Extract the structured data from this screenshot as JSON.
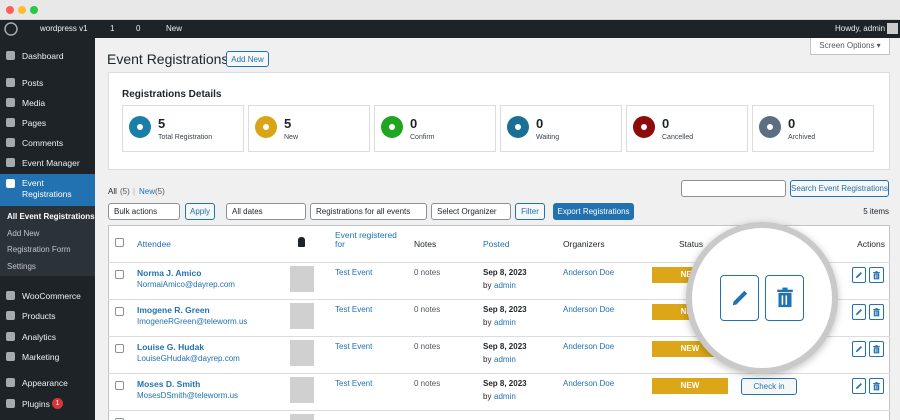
{
  "admin_bar": {
    "site": "wordpress v1",
    "updates": "1",
    "comments": "0",
    "new": "New",
    "howdy": "Howdy, admin"
  },
  "menu": {
    "top": [
      "Dashboard",
      "Posts",
      "Media",
      "Pages",
      "Comments",
      "Event Manager"
    ],
    "active": [
      "Event",
      "Registrations"
    ],
    "submenu": [
      "All Event Registrations",
      "Add New",
      "Registration Form",
      "Settings"
    ],
    "bottom": [
      "WooCommerce",
      "Products",
      "Analytics",
      "Marketing",
      "Appearance",
      "Plugins"
    ],
    "plugins_badge": "1"
  },
  "header": {
    "title": "Event Registrations",
    "add_new": "Add New",
    "screen_options": "Screen Options ▾"
  },
  "details": {
    "title": "Registrations Details",
    "stats": [
      {
        "value": "5",
        "label": "Total Registration",
        "color": "#1a7fa8"
      },
      {
        "value": "5",
        "label": "New",
        "color": "#d9a515"
      },
      {
        "value": "0",
        "label": "Confirm",
        "color": "#20a520"
      },
      {
        "value": "0",
        "label": "Waiting",
        "color": "#1a6f94"
      },
      {
        "value": "0",
        "label": "Cancelled",
        "color": "#8e0b0b"
      },
      {
        "value": "0",
        "label": "Archived",
        "color": "#5b6e82"
      }
    ]
  },
  "views": {
    "all": "All",
    "all_count": "(5)",
    "sep": "|",
    "new": "New",
    "new_count": "(5)"
  },
  "search_button": "Search Event Registrations",
  "filters": {
    "bulk": "Bulk actions",
    "apply": "Apply",
    "dates": "All dates",
    "events": "Registrations for all events",
    "organizer": "Select Organizer",
    "filter": "Filter",
    "export": "Export Registrations",
    "items": "5 items"
  },
  "table": {
    "columns": {
      "attendee": "Attendee",
      "event": [
        "Event registered",
        "for"
      ],
      "notes": "Notes",
      "posted": "Posted",
      "organizers": "Organizers",
      "status": "Status",
      "actions": "Actions"
    },
    "rows": [
      {
        "name": "Norma J. Amico",
        "email": "NormaiAmico@dayrep.com",
        "event": "Test Event",
        "notes": "0 notes",
        "date": "Sep 8, 2023",
        "by": "by",
        "author": "admin",
        "organizer": "Anderson Doe",
        "status": "NEW"
      },
      {
        "name": "Imogene R. Green",
        "email": "ImogeneRGreen@teleworm.us",
        "event": "Test Event",
        "notes": "0 notes",
        "date": "Sep 8, 2023",
        "by": "by",
        "author": "admin",
        "organizer": "Anderson Doe",
        "status": "NEW"
      },
      {
        "name": "Louise G. Hudak",
        "email": "LouiseGHudak@dayrep.com",
        "event": "Test Event",
        "notes": "0 notes",
        "date": "Sep 8, 2023",
        "by": "by",
        "author": "admin",
        "organizer": "Anderson Doe",
        "status": "NEW"
      },
      {
        "name": "Moses D. Smith",
        "email": "MosesDSmith@teleworm.us",
        "event": "Test Event",
        "notes": "0 notes",
        "date": "Sep 8, 2023",
        "by": "by",
        "author": "admin",
        "organizer": "Anderson Doe",
        "status": "NEW",
        "checkin": "Check in"
      }
    ]
  }
}
